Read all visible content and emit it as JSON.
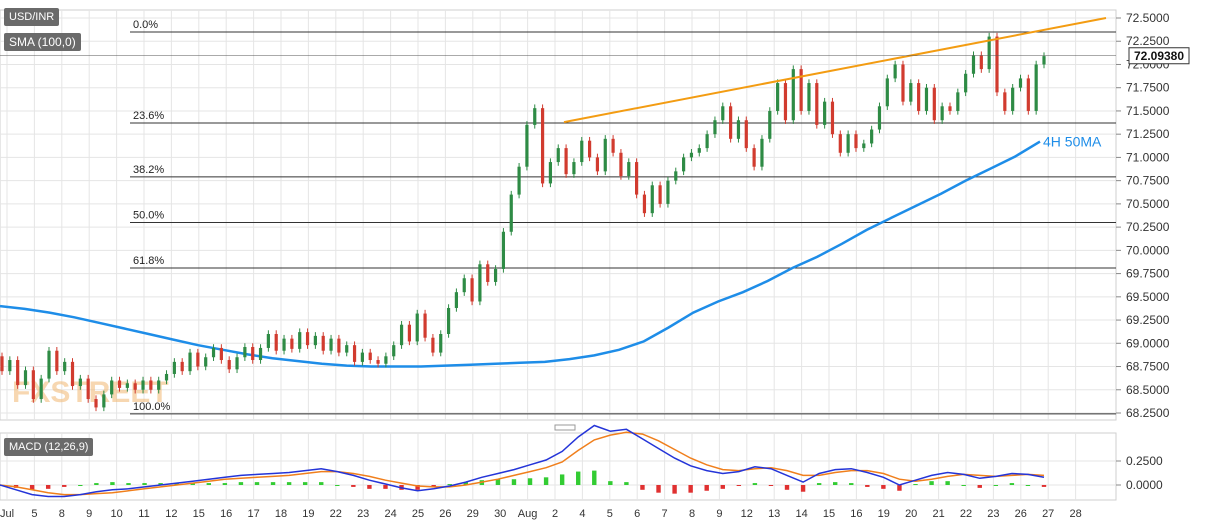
{
  "symbol_label": "USD/INR",
  "indicator_label": "SMA (100,0)",
  "macd_label": "MACD (12,26,9)",
  "last_price_label": "72.09380",
  "watermark": "FXSTREET",
  "colors": {
    "up": "#2e8b45",
    "down": "#d13b2f",
    "sma": "#1e8de8",
    "trend": "#f39c12",
    "macd_line": "#2434d8",
    "signal_line": "#f07f1c",
    "hist_up": "#33cc33",
    "hist_down": "#e03030",
    "fib_line": "#333333",
    "grid": "#e5e5e5",
    "label_bg": "#6a6a6a"
  },
  "chart_data": [
    {
      "type": "candlestick",
      "title": "USD/INR",
      "x_ticks": [
        "Jul",
        "5",
        "8",
        "9",
        "10",
        "11",
        "12",
        "15",
        "16",
        "17",
        "18",
        "19",
        "22",
        "23",
        "24",
        "25",
        "26",
        "29",
        "30",
        "Aug",
        "2",
        "4",
        "5",
        "6",
        "7",
        "8",
        "9",
        "12",
        "13",
        "14",
        "15",
        "16",
        "19",
        "20",
        "21",
        "22",
        "23",
        "26",
        "27",
        "28"
      ],
      "ylim": [
        68.25,
        72.5
      ],
      "y_ticks": [
        72.5,
        72.25,
        72.0,
        71.75,
        71.5,
        71.25,
        71.0,
        70.75,
        70.5,
        70.25,
        70.0,
        69.75,
        69.5,
        69.25,
        69.0,
        68.75,
        68.5,
        68.25
      ],
      "y_tick_labels": [
        "72.5000",
        "72.2500",
        "72.0000",
        "71.7500",
        "71.5000",
        "71.2500",
        "71.0000",
        "70.7500",
        "70.5000",
        "70.2500",
        "70.0000",
        "69.7500",
        "69.5000",
        "69.2500",
        "69.0000",
        "68.7500",
        "68.5000",
        "68.2500"
      ],
      "last_price": 72.0938,
      "fibonacci": [
        {
          "label": "0.0%",
          "value": 72.35
        },
        {
          "label": "23.6%",
          "value": 71.37
        },
        {
          "label": "38.2%",
          "value": 70.79
        },
        {
          "label": "50.0%",
          "value": 70.3
        },
        {
          "label": "61.8%",
          "value": 69.81
        },
        {
          "label": "100.0%",
          "value": 68.24
        }
      ],
      "trendline": {
        "start": {
          "x": "Aug 4",
          "y": 71.38
        },
        "end": {
          "x": "Aug 27",
          "y": 72.5
        }
      },
      "sma": {
        "name": "4H 50MA",
        "values": [
          69.4,
          69.37,
          69.33,
          69.28,
          69.22,
          69.16,
          69.1,
          69.04,
          68.98,
          68.93,
          68.88,
          68.84,
          68.81,
          68.78,
          68.76,
          68.75,
          68.75,
          68.75,
          68.76,
          68.77,
          68.78,
          68.79,
          68.8,
          68.83,
          68.87,
          68.93,
          69.02,
          69.17,
          69.33,
          69.45,
          69.55,
          69.67,
          69.81,
          69.93,
          70.07,
          70.22,
          70.35,
          70.48,
          70.61,
          70.75,
          70.88,
          71.01,
          71.17
        ]
      },
      "candles": [
        [
          68.86,
          68.7
        ],
        [
          68.7,
          68.82
        ],
        [
          68.82,
          68.55
        ],
        [
          68.55,
          68.71
        ],
        [
          68.71,
          68.4
        ],
        [
          68.4,
          68.62
        ],
        [
          68.62,
          68.92
        ],
        [
          68.92,
          68.7
        ],
        [
          68.7,
          68.8
        ],
        [
          68.8,
          68.54
        ],
        [
          68.54,
          68.62
        ],
        [
          68.62,
          68.4
        ],
        [
          68.4,
          68.31
        ],
        [
          68.31,
          68.45
        ],
        [
          68.45,
          68.6
        ],
        [
          68.6,
          68.52
        ],
        [
          68.52,
          68.57
        ],
        [
          68.57,
          68.5
        ],
        [
          68.5,
          68.6
        ],
        [
          68.6,
          68.5
        ],
        [
          68.5,
          68.6
        ],
        [
          68.6,
          68.67
        ],
        [
          68.67,
          68.8
        ],
        [
          68.8,
          68.7
        ],
        [
          68.7,
          68.9
        ],
        [
          68.9,
          68.75
        ],
        [
          68.75,
          68.85
        ],
        [
          68.85,
          68.95
        ],
        [
          68.95,
          68.82
        ],
        [
          68.82,
          68.72
        ],
        [
          68.72,
          68.85
        ],
        [
          68.85,
          68.96
        ],
        [
          68.96,
          68.82
        ],
        [
          68.82,
          68.95
        ],
        [
          68.95,
          69.1
        ],
        [
          69.1,
          68.92
        ],
        [
          68.92,
          69.05
        ],
        [
          69.05,
          68.94
        ],
        [
          68.94,
          69.12
        ],
        [
          69.12,
          68.98
        ],
        [
          68.98,
          69.08
        ],
        [
          69.08,
          68.92
        ],
        [
          68.92,
          69.05
        ],
        [
          69.05,
          68.9
        ],
        [
          68.9,
          68.98
        ],
        [
          68.98,
          68.8
        ],
        [
          68.8,
          68.9
        ],
        [
          68.9,
          68.82
        ],
        [
          68.82,
          68.78
        ],
        [
          68.78,
          68.86
        ],
        [
          68.86,
          68.98
        ],
        [
          68.98,
          69.2
        ],
        [
          69.2,
          69.02
        ],
        [
          69.02,
          69.32
        ],
        [
          69.32,
          69.06
        ],
        [
          69.06,
          68.9
        ],
        [
          68.9,
          69.1
        ],
        [
          69.1,
          69.38
        ],
        [
          69.38,
          69.55
        ],
        [
          69.55,
          69.7
        ],
        [
          69.7,
          69.45
        ],
        [
          69.45,
          69.85
        ],
        [
          69.85,
          69.66
        ],
        [
          69.66,
          69.8
        ],
        [
          69.8,
          70.2
        ],
        [
          70.2,
          70.6
        ],
        [
          70.6,
          70.9
        ],
        [
          70.9,
          71.35
        ],
        [
          71.35,
          71.53
        ],
        [
          71.53,
          70.72
        ],
        [
          70.72,
          70.95
        ],
        [
          70.95,
          71.1
        ],
        [
          71.1,
          70.82
        ],
        [
          70.82,
          70.95
        ],
        [
          70.95,
          71.18
        ],
        [
          71.18,
          71.0
        ],
        [
          71.0,
          70.85
        ],
        [
          70.85,
          71.2
        ],
        [
          71.2,
          71.05
        ],
        [
          71.05,
          70.8
        ],
        [
          70.8,
          70.95
        ],
        [
          70.95,
          70.6
        ],
        [
          70.6,
          70.4
        ],
        [
          70.4,
          70.7
        ],
        [
          70.7,
          70.5
        ],
        [
          70.5,
          70.75
        ],
        [
          70.75,
          70.85
        ],
        [
          70.85,
          71.0
        ],
        [
          71.0,
          71.05
        ],
        [
          71.05,
          71.1
        ],
        [
          71.1,
          71.25
        ],
        [
          71.25,
          71.4
        ],
        [
          71.4,
          71.55
        ],
        [
          71.55,
          71.2
        ],
        [
          71.2,
          71.4
        ],
        [
          71.4,
          71.1
        ],
        [
          71.1,
          70.9
        ],
        [
          70.9,
          71.2
        ],
        [
          71.2,
          71.5
        ],
        [
          71.5,
          71.8
        ],
        [
          71.8,
          71.4
        ],
        [
          71.4,
          71.95
        ],
        [
          71.95,
          71.5
        ],
        [
          71.5,
          71.8
        ],
        [
          71.8,
          71.35
        ],
        [
          71.35,
          71.6
        ],
        [
          71.6,
          71.25
        ],
        [
          71.25,
          71.05
        ],
        [
          71.05,
          71.25
        ],
        [
          71.25,
          71.1
        ],
        [
          71.1,
          71.15
        ],
        [
          71.15,
          71.3
        ],
        [
          71.3,
          71.55
        ],
        [
          71.55,
          71.85
        ],
        [
          71.85,
          72.0
        ],
        [
          72.0,
          71.6
        ],
        [
          71.6,
          71.8
        ],
        [
          71.8,
          71.5
        ],
        [
          71.5,
          71.75
        ],
        [
          71.75,
          71.4
        ],
        [
          71.4,
          71.55
        ],
        [
          71.55,
          71.5
        ],
        [
          71.5,
          71.7
        ],
        [
          71.7,
          71.9
        ],
        [
          71.9,
          72.1
        ],
        [
          72.1,
          71.95
        ],
        [
          71.95,
          72.3
        ],
        [
          72.3,
          71.7
        ],
        [
          71.7,
          71.5
        ],
        [
          71.5,
          71.75
        ],
        [
          71.75,
          71.85
        ],
        [
          71.85,
          71.5
        ],
        [
          71.5,
          72.0
        ],
        [
          72.0,
          72.09
        ]
      ]
    },
    {
      "type": "macd",
      "title": "MACD (12,26,9)",
      "y_ticks": [
        0.25,
        0.0
      ],
      "y_tick_labels": [
        "0.2500",
        "0.0000"
      ],
      "ylim": [
        -0.13,
        0.7
      ],
      "x_ticks": [
        "Jul",
        "5",
        "8",
        "9",
        "10",
        "11",
        "12",
        "15",
        "16",
        "17",
        "18",
        "19",
        "22",
        "23",
        "24",
        "25",
        "26",
        "29",
        "30",
        "Aug",
        "2",
        "4",
        "5",
        "6",
        "7",
        "8",
        "9",
        "12",
        "13",
        "14",
        "15",
        "16",
        "19",
        "20",
        "21",
        "22",
        "23",
        "26",
        "27",
        "28"
      ],
      "macd": [
        0.0,
        -0.05,
        -0.1,
        -0.12,
        -0.12,
        -0.1,
        -0.07,
        -0.05,
        -0.04,
        -0.02,
        0.0,
        0.02,
        0.04,
        0.06,
        0.08,
        0.1,
        0.11,
        0.12,
        0.13,
        0.15,
        0.17,
        0.14,
        0.1,
        0.05,
        0.01,
        -0.03,
        -0.06,
        -0.04,
        -0.01,
        0.03,
        0.08,
        0.12,
        0.16,
        0.21,
        0.26,
        0.35,
        0.5,
        0.62,
        0.56,
        0.58,
        0.48,
        0.38,
        0.28,
        0.2,
        0.15,
        0.12,
        0.14,
        0.19,
        0.17,
        0.1,
        0.03,
        0.12,
        0.16,
        0.17,
        0.13,
        0.08,
        0.0,
        0.05,
        0.1,
        0.13,
        0.11,
        0.07,
        0.09,
        0.12,
        0.11,
        0.08
      ],
      "signal": [
        0.0,
        -0.02,
        -0.05,
        -0.08,
        -0.1,
        -0.1,
        -0.09,
        -0.08,
        -0.06,
        -0.04,
        -0.02,
        0.0,
        0.02,
        0.04,
        0.06,
        0.07,
        0.08,
        0.09,
        0.1,
        0.12,
        0.14,
        0.14,
        0.12,
        0.09,
        0.05,
        0.02,
        -0.01,
        -0.02,
        -0.02,
        0.0,
        0.03,
        0.06,
        0.1,
        0.14,
        0.18,
        0.24,
        0.36,
        0.47,
        0.52,
        0.55,
        0.53,
        0.46,
        0.37,
        0.28,
        0.21,
        0.16,
        0.15,
        0.17,
        0.18,
        0.15,
        0.1,
        0.1,
        0.13,
        0.15,
        0.15,
        0.12,
        0.06,
        0.04,
        0.06,
        0.09,
        0.11,
        0.1,
        0.09,
        0.1,
        0.11,
        0.1
      ]
    }
  ]
}
